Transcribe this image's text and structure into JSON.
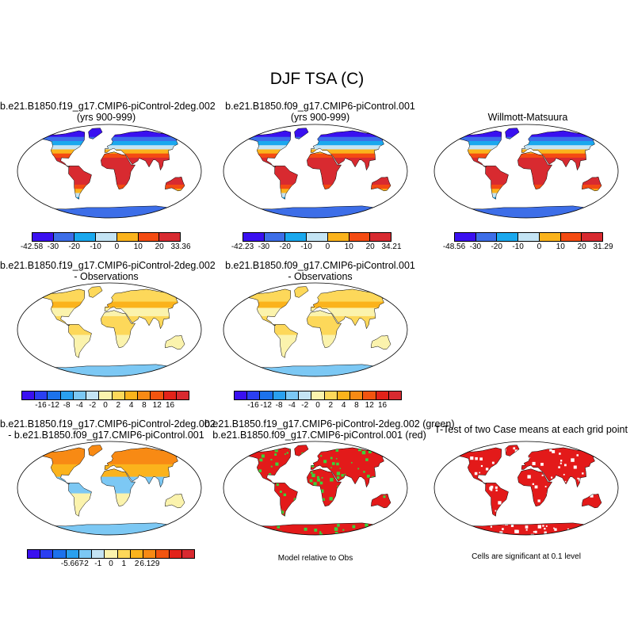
{
  "title": "DJF TSA (C)",
  "panels": [
    {
      "id": "p1",
      "title1": "b.e21.B1850.f19_g17.CMIP6-piControl-2deg.002",
      "title2": "(yrs 900-999)",
      "scheme": "abs"
    },
    {
      "id": "p2",
      "title1": "b.e21.B1850.f09_g17.CMIP6-piControl.001",
      "title2": "(yrs 900-999)",
      "scheme": "abs"
    },
    {
      "id": "p3",
      "title1": "Willmott-Matsuura",
      "title2": "",
      "scheme": "abs"
    },
    {
      "id": "p4",
      "title1": "b.e21.B1850.f19_g17.CMIP6-piControl-2deg.002",
      "title2": "- Observations",
      "scheme": "diff"
    },
    {
      "id": "p5",
      "title1": "b.e21.B1850.f09_g17.CMIP6-piControl.001",
      "title2": "- Observations",
      "scheme": "diff"
    },
    {
      "id": "p6",
      "title1": "b.e21.B1850.f19_g17.CMIP6-piControl-2deg.002",
      "title2": "- b.e21.B1850.f09_g17.CMIP6-piControl.001",
      "scheme": "diff2"
    },
    {
      "id": "p7",
      "title1": "b.e21.B1850.f19_g17.CMIP6-piControl-2deg.002 (green)",
      "title2": "b.e21.B1850.f09_g17.CMIP6-piControl.001 (red)",
      "scheme": "rg"
    },
    {
      "id": "p8",
      "title1": "T-Test of two Case means at each grid point",
      "title2": "",
      "scheme": "sig"
    }
  ],
  "colorbars": [
    {
      "id": "cb1",
      "colors": [
        "#3a10f0",
        "#3d6ee8",
        "#1aa8ee",
        "#c4e4f4",
        "#fbb31c",
        "#f44b12",
        "#d82a30"
      ],
      "labels": [
        "-42.58",
        "-30",
        "-20",
        "-10",
        "0",
        "10",
        "20",
        "33.36"
      ]
    },
    {
      "id": "cb2",
      "colors": [
        "#3a10f0",
        "#3d6ee8",
        "#1aa8ee",
        "#c4e4f4",
        "#fbb31c",
        "#f44b12",
        "#d82a30"
      ],
      "labels": [
        "-42.23",
        "-30",
        "-20",
        "-10",
        "0",
        "10",
        "20",
        "34.21"
      ]
    },
    {
      "id": "cb3",
      "colors": [
        "#3a10f0",
        "#3d6ee8",
        "#1aa8ee",
        "#c4e4f4",
        "#fbb31c",
        "#f44b12",
        "#d82a30"
      ],
      "labels": [
        "-48.56",
        "-30",
        "-20",
        "-10",
        "0",
        "10",
        "20",
        "31.29"
      ]
    },
    {
      "id": "cb4",
      "colors": [
        "#3a10f0",
        "#2a3ff2",
        "#1c72ec",
        "#2aa0ee",
        "#7cc8f4",
        "#c4e4f4",
        "#fbf3ad",
        "#fdd85a",
        "#fbb31c",
        "#f88a14",
        "#f2540f",
        "#e2231a",
        "#d82a30"
      ],
      "labels": [
        "-16",
        "-12",
        "-8",
        "-4",
        "-2",
        "0",
        "2",
        "4",
        "8",
        "12",
        "16"
      ]
    },
    {
      "id": "cb5",
      "colors": [
        "#3a10f0",
        "#2a3ff2",
        "#1c72ec",
        "#2aa0ee",
        "#7cc8f4",
        "#c4e4f4",
        "#fbf3ad",
        "#fdd85a",
        "#fbb31c",
        "#f88a14",
        "#f2540f",
        "#e2231a",
        "#d82a30"
      ],
      "labels": [
        "-16",
        "-12",
        "-8",
        "-4",
        "-2",
        "0",
        "2",
        "4",
        "8",
        "12",
        "16"
      ]
    },
    {
      "id": "cb6",
      "colors": [
        "#3a10f0",
        "#2a3ff2",
        "#1c72ec",
        "#2aa0ee",
        "#7cc8f4",
        "#c4e4f4",
        "#fbf3ad",
        "#fdd85a",
        "#fbb31c",
        "#f88a14",
        "#f2540f",
        "#e2231a",
        "#d82a30"
      ],
      "labels": [
        "-5.667",
        "-2",
        "-1",
        "0",
        "1",
        "2",
        "6.129"
      ]
    }
  ],
  "notes": {
    "model_rel_obs": "Model relative to Obs",
    "significance": "Cells are significant at 0.1 level"
  },
  "chart_data": {
    "type": "heatmap",
    "title": "DJF TSA (C)",
    "panels": [
      {
        "title": "b.e21.B1850.f19_g17.CMIP6-piControl-2deg.002 (yrs 900-999)",
        "colorbar_range": [
          -42.58,
          33.36
        ],
        "levels": [
          -30,
          -20,
          -10,
          0,
          10,
          20
        ]
      },
      {
        "title": "b.e21.B1850.f09_g17.CMIP6-piControl.001 (yrs 900-999)",
        "colorbar_range": [
          -42.23,
          34.21
        ],
        "levels": [
          -30,
          -20,
          -10,
          0,
          10,
          20
        ]
      },
      {
        "title": "Willmott-Matsuura",
        "colorbar_range": [
          -48.56,
          31.29
        ],
        "levels": [
          -30,
          -20,
          -10,
          0,
          10,
          20
        ]
      },
      {
        "title": "b.e21.B1850.f19_g17.CMIP6-piControl-2deg.002 - Observations",
        "levels": [
          -16,
          -12,
          -8,
          -4,
          -2,
          0,
          2,
          4,
          8,
          12,
          16
        ]
      },
      {
        "title": "b.e21.B1850.f09_g17.CMIP6-piControl.001 - Observations",
        "levels": [
          -16,
          -12,
          -8,
          -4,
          -2,
          0,
          2,
          4,
          8,
          12,
          16
        ]
      },
      {
        "title": "b.e21.B1850.f19_g17.CMIP6-piControl-2deg.002 - b.e21.B1850.f09_g17.CMIP6-piControl.001",
        "colorbar_range": [
          -5.667,
          6.129
        ],
        "levels": [
          -2,
          -1,
          0,
          1,
          2
        ]
      },
      {
        "title": "b.e21.B1850.f19_g17.CMIP6-piControl-2deg.002 (green) b.e21.B1850.f09_g17.CMIP6-piControl.001 (red)",
        "note": "Model relative to Obs"
      },
      {
        "title": "T-Test of two Case means at each grid point",
        "note": "Cells are significant at 0.1 level"
      }
    ]
  }
}
